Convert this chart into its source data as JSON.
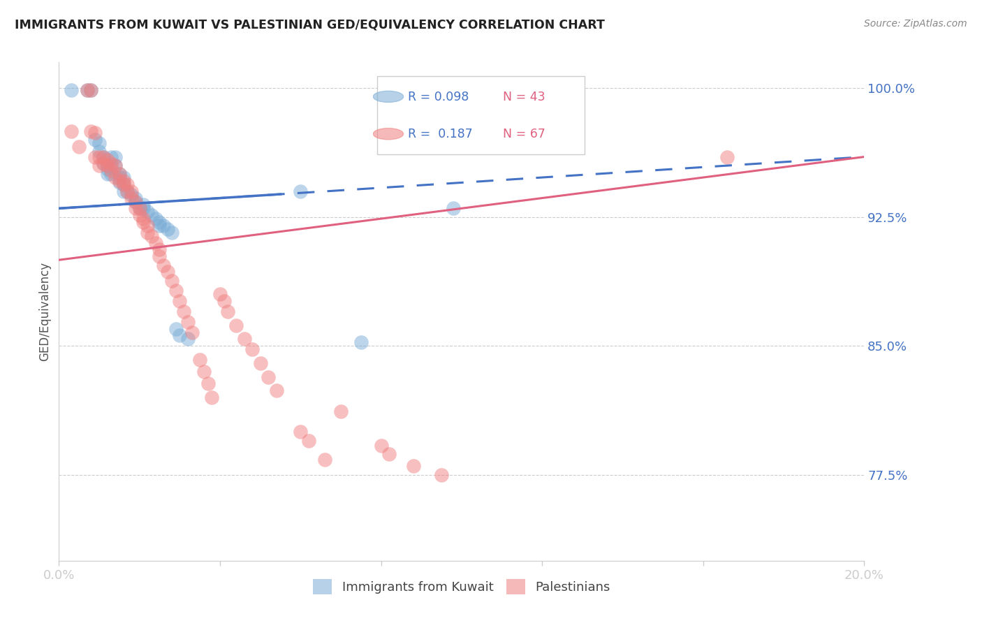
{
  "title": "IMMIGRANTS FROM KUWAIT VS PALESTINIAN GED/EQUIVALENCY CORRELATION CHART",
  "source": "Source: ZipAtlas.com",
  "ylabel": "GED/Equivalency",
  "xlim": [
    0.0,
    0.2
  ],
  "ylim": [
    0.725,
    1.015
  ],
  "yticks": [
    0.775,
    0.85,
    0.925,
    1.0
  ],
  "ytick_labels": [
    "77.5%",
    "85.0%",
    "92.5%",
    "100.0%"
  ],
  "xticks": [
    0.0,
    0.04,
    0.08,
    0.12,
    0.16,
    0.2
  ],
  "xtick_labels": [
    "0.0%",
    "",
    "",
    "",
    "",
    "20.0%"
  ],
  "kuwait_R": 0.098,
  "kuwait_N": 43,
  "palest_R": 0.187,
  "palest_N": 67,
  "kuwait_color": "#7aacd6",
  "palest_color": "#f08080",
  "legend_kuwait": "Immigrants from Kuwait",
  "legend_palest": "Palestinians",
  "kuwait_line_x0": 0.0,
  "kuwait_line_x1": 0.2,
  "kuwait_line_y0": 0.93,
  "kuwait_line_y1": 0.96,
  "palest_line_x0": 0.0,
  "palest_line_x1": 0.2,
  "palest_line_y0": 0.9,
  "palest_line_y1": 0.96,
  "kuwait_points_x": [
    0.003,
    0.007,
    0.008,
    0.009,
    0.01,
    0.01,
    0.011,
    0.011,
    0.012,
    0.012,
    0.012,
    0.013,
    0.013,
    0.013,
    0.014,
    0.014,
    0.015,
    0.015,
    0.015,
    0.016,
    0.016,
    0.016,
    0.017,
    0.018,
    0.019,
    0.019,
    0.02,
    0.021,
    0.021,
    0.022,
    0.023,
    0.024,
    0.025,
    0.025,
    0.026,
    0.027,
    0.028,
    0.029,
    0.03,
    0.032,
    0.06,
    0.075,
    0.098
  ],
  "kuwait_points_y": [
    0.999,
    0.999,
    0.999,
    0.97,
    0.968,
    0.963,
    0.96,
    0.956,
    0.955,
    0.953,
    0.95,
    0.96,
    0.955,
    0.95,
    0.96,
    0.955,
    0.95,
    0.948,
    0.945,
    0.948,
    0.944,
    0.94,
    0.94,
    0.938,
    0.936,
    0.934,
    0.93,
    0.932,
    0.93,
    0.928,
    0.926,
    0.924,
    0.922,
    0.92,
    0.92,
    0.918,
    0.916,
    0.86,
    0.856,
    0.854,
    0.94,
    0.852,
    0.93
  ],
  "palest_points_x": [
    0.003,
    0.005,
    0.007,
    0.008,
    0.008,
    0.009,
    0.009,
    0.01,
    0.01,
    0.011,
    0.011,
    0.012,
    0.012,
    0.013,
    0.013,
    0.014,
    0.014,
    0.015,
    0.015,
    0.016,
    0.016,
    0.017,
    0.017,
    0.018,
    0.018,
    0.019,
    0.019,
    0.02,
    0.02,
    0.021,
    0.021,
    0.022,
    0.022,
    0.023,
    0.024,
    0.025,
    0.025,
    0.026,
    0.027,
    0.028,
    0.029,
    0.03,
    0.031,
    0.032,
    0.033,
    0.035,
    0.036,
    0.037,
    0.038,
    0.04,
    0.041,
    0.042,
    0.044,
    0.046,
    0.048,
    0.05,
    0.052,
    0.054,
    0.06,
    0.062,
    0.066,
    0.07,
    0.08,
    0.082,
    0.088,
    0.095,
    0.166
  ],
  "palest_points_y": [
    0.975,
    0.966,
    0.999,
    0.999,
    0.975,
    0.974,
    0.96,
    0.96,
    0.955,
    0.96,
    0.956,
    0.958,
    0.955,
    0.956,
    0.952,
    0.955,
    0.948,
    0.95,
    0.946,
    0.946,
    0.944,
    0.944,
    0.94,
    0.94,
    0.936,
    0.934,
    0.93,
    0.93,
    0.926,
    0.924,
    0.922,
    0.92,
    0.916,
    0.914,
    0.91,
    0.906,
    0.902,
    0.897,
    0.893,
    0.888,
    0.882,
    0.876,
    0.87,
    0.864,
    0.858,
    0.842,
    0.835,
    0.828,
    0.82,
    0.88,
    0.876,
    0.87,
    0.862,
    0.854,
    0.848,
    0.84,
    0.832,
    0.824,
    0.8,
    0.795,
    0.784,
    0.812,
    0.792,
    0.787,
    0.78,
    0.775,
    0.96
  ]
}
